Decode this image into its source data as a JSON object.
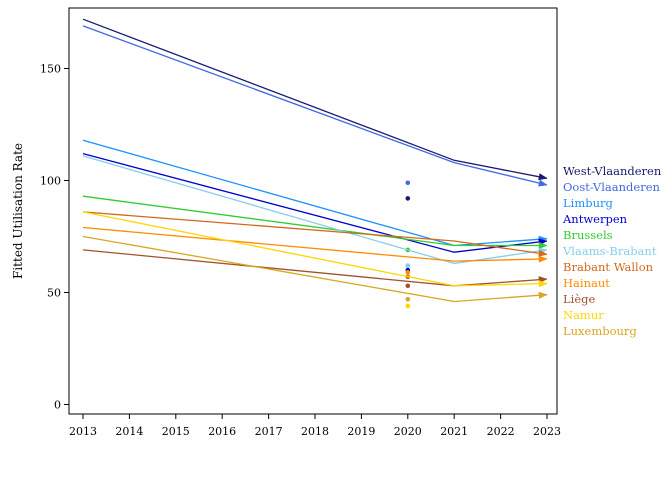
{
  "chart_data": {
    "type": "line",
    "title": "",
    "xlabel": "",
    "ylabel": "Fitted Utilisation Rate",
    "xlim": [
      2013,
      2023
    ],
    "ylim": [
      -5,
      175
    ],
    "x_ticks": [
      2013,
      2014,
      2015,
      2016,
      2017,
      2018,
      2019,
      2020,
      2021,
      2022,
      2023
    ],
    "y_ticks": [
      0,
      50,
      100,
      150
    ],
    "grid": false,
    "legend": "right, direct labels at line ends",
    "x": [
      2013,
      2021,
      2023
    ],
    "series": [
      {
        "name": "West-Vlaanderen",
        "color": "#191970",
        "values": [
          172,
          109,
          101
        ],
        "point_2020": 92
      },
      {
        "name": "Oost-Vlaanderen",
        "color": "#4169e1",
        "values": [
          169,
          108,
          98
        ],
        "point_2020": 99
      },
      {
        "name": "Limburg",
        "color": "#1e90ff",
        "values": [
          118,
          71,
          74
        ],
        "point_2020": 62
      },
      {
        "name": "Antwerpen",
        "color": "#0000cd",
        "values": [
          112,
          68,
          73
        ],
        "point_2020": 60
      },
      {
        "name": "Brussels",
        "color": "#32cd32",
        "values": [
          93,
          71,
          71
        ],
        "point_2020": 69
      },
      {
        "name": "Vlaams-Brabant",
        "color": "#87ceeb",
        "values": [
          111,
          63,
          69
        ],
        "point_2020": 62
      },
      {
        "name": "Brabant Wallon",
        "color": "#d2691e",
        "values": [
          86,
          73,
          67
        ],
        "point_2020": 57
      },
      {
        "name": "Hainaut",
        "color": "#ff8c00",
        "values": [
          79,
          64,
          65
        ],
        "point_2020": 59
      },
      {
        "name": "Liège",
        "color": "#a0522d",
        "values": [
          69,
          53,
          56
        ],
        "point_2020": 53
      },
      {
        "name": "Namur",
        "color": "#ffd700",
        "values": [
          86,
          53,
          54
        ],
        "point_2020": 44
      },
      {
        "name": "Luxembourg",
        "color": "#daa520",
        "values": [
          75,
          46,
          49
        ],
        "point_2020": 47
      }
    ]
  }
}
